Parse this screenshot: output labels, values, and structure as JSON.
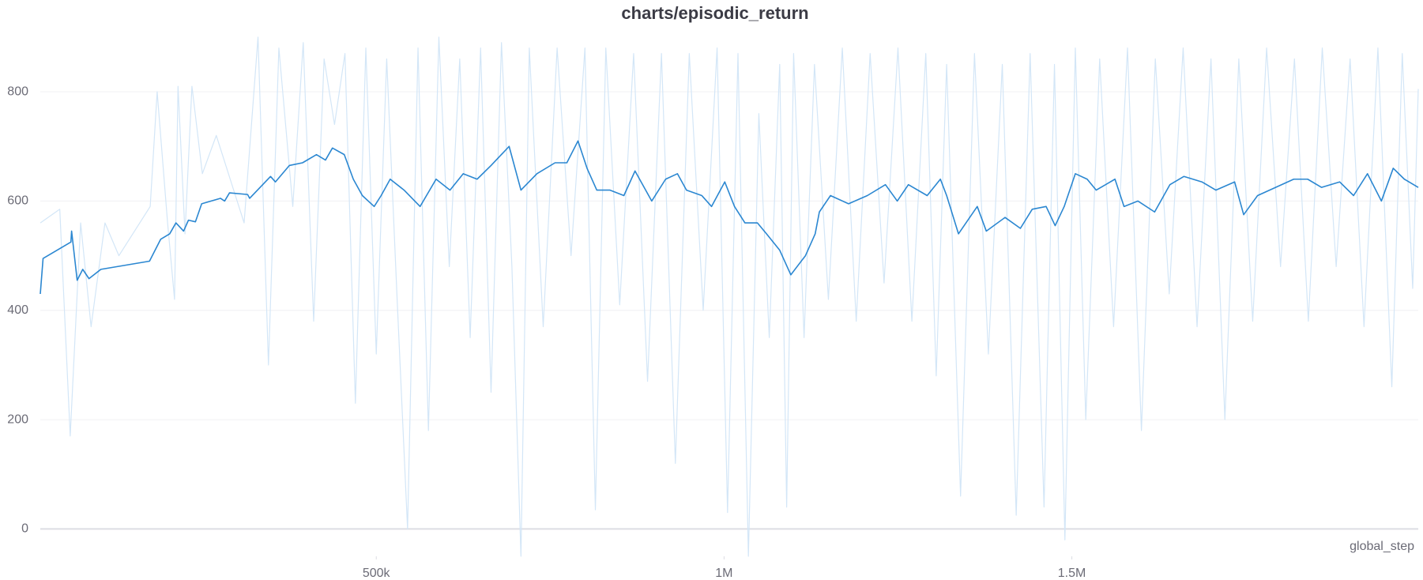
{
  "chart_data": {
    "type": "line",
    "title": "charts/episodic_return",
    "xlabel": "global_step",
    "xlim": [
      17000,
      1998000
    ],
    "ylim": [
      -50,
      910
    ],
    "xticks": [
      {
        "value": 500000,
        "label": "500k"
      },
      {
        "value": 1000000,
        "label": "1M"
      },
      {
        "value": 1500000,
        "label": "1.5M"
      }
    ],
    "yticks": [
      0,
      200,
      400,
      600,
      800
    ],
    "grid": true,
    "series": [
      {
        "role": "raw",
        "color": "#d3e6f7",
        "x": [
          17000,
          45000,
          60000,
          75000,
          90000,
          110000,
          130000,
          175000,
          185000,
          200000,
          210000,
          215000,
          225000,
          235000,
          250000,
          270000,
          290000,
          310000,
          330000,
          345000,
          360000,
          380000,
          395000,
          410000,
          425000,
          440000,
          455000,
          470000,
          485000,
          500000,
          515000,
          530000,
          545000,
          560000,
          575000,
          590000,
          605000,
          620000,
          635000,
          650000,
          665000,
          680000,
          695000,
          708000,
          720000,
          740000,
          760000,
          780000,
          800000,
          815000,
          830000,
          850000,
          870000,
          890000,
          910000,
          930000,
          950000,
          970000,
          990000,
          1005000,
          1020000,
          1035000,
          1050000,
          1065000,
          1080000,
          1090000,
          1100000,
          1115000,
          1130000,
          1150000,
          1170000,
          1190000,
          1210000,
          1230000,
          1250000,
          1270000,
          1290000,
          1305000,
          1320000,
          1340000,
          1360000,
          1380000,
          1400000,
          1420000,
          1440000,
          1460000,
          1475000,
          1490000,
          1505000,
          1520000,
          1540000,
          1560000,
          1580000,
          1600000,
          1620000,
          1640000,
          1660000,
          1680000,
          1700000,
          1720000,
          1740000,
          1760000,
          1780000,
          1800000,
          1820000,
          1840000,
          1860000,
          1880000,
          1900000,
          1920000,
          1940000,
          1960000,
          1975000,
          1990000,
          1998000
        ],
        "values": [
          560,
          585,
          170,
          560,
          370,
          560,
          500,
          590,
          800,
          560,
          420,
          810,
          540,
          810,
          650,
          720,
          640,
          560,
          900,
          300,
          880,
          590,
          890,
          380,
          860,
          740,
          870,
          230,
          880,
          320,
          860,
          420,
          0,
          880,
          180,
          900,
          480,
          860,
          350,
          880,
          250,
          890,
          480,
          -50,
          880,
          370,
          880,
          500,
          880,
          35,
          880,
          410,
          870,
          270,
          870,
          120,
          870,
          400,
          880,
          30,
          870,
          -50,
          760,
          350,
          850,
          40,
          870,
          350,
          850,
          420,
          880,
          380,
          870,
          450,
          880,
          380,
          870,
          280,
          850,
          60,
          870,
          320,
          850,
          25,
          870,
          40,
          850,
          -20,
          880,
          200,
          860,
          370,
          880,
          180,
          860,
          430,
          880,
          370,
          860,
          200,
          860,
          380,
          880,
          480,
          860,
          380,
          880,
          480,
          860,
          370,
          880,
          260,
          870,
          440,
          805
        ]
      },
      {
        "role": "smoothed",
        "color": "#2b87d1",
        "x": [
          17000,
          21000,
          61000,
          62000,
          70000,
          78000,
          87000,
          104000,
          174000,
          190000,
          203000,
          212000,
          223000,
          230000,
          240000,
          249000,
          276000,
          282000,
          289000,
          315000,
          318000,
          348000,
          355000,
          375000,
          394000,
          414000,
          427000,
          437000,
          454000,
          467000,
          480000,
          497000,
          507000,
          520000,
          540000,
          563000,
          586000,
          606000,
          625000,
          645000,
          665000,
          691000,
          708000,
          731000,
          757000,
          774000,
          790000,
          803000,
          817000,
          836000,
          856000,
          872000,
          896000,
          916000,
          933000,
          946000,
          968000,
          982000,
          1001000,
          1015000,
          1030000,
          1048000,
          1061000,
          1080000,
          1096000,
          1117000,
          1131000,
          1137000,
          1153000,
          1179000,
          1206000,
          1232000,
          1249000,
          1265000,
          1292000,
          1311000,
          1320000,
          1337000,
          1364000,
          1377000,
          1404000,
          1426000,
          1443000,
          1463000,
          1476000,
          1489000,
          1505000,
          1522000,
          1535000,
          1562000,
          1575000,
          1595000,
          1619000,
          1641000,
          1661000,
          1687000,
          1707000,
          1734000,
          1747000,
          1767000,
          1793000,
          1819000,
          1839000,
          1859000,
          1885000,
          1905000,
          1925000,
          1945000,
          1962000,
          1978000,
          1998000
        ],
        "values": [
          430,
          495,
          525,
          545,
          455,
          475,
          458,
          475,
          490,
          530,
          540,
          560,
          545,
          565,
          562,
          595,
          605,
          600,
          615,
          612,
          605,
          645,
          635,
          665,
          670,
          685,
          675,
          697,
          685,
          640,
          610,
          590,
          610,
          640,
          620,
          590,
          640,
          620,
          650,
          640,
          665,
          700,
          620,
          650,
          670,
          670,
          710,
          660,
          620,
          620,
          610,
          655,
          600,
          640,
          650,
          620,
          610,
          590,
          635,
          590,
          560,
          560,
          540,
          510,
          465,
          500,
          540,
          580,
          610,
          595,
          610,
          630,
          600,
          630,
          610,
          640,
          610,
          540,
          590,
          545,
          570,
          550,
          585,
          590,
          555,
          590,
          650,
          640,
          620,
          640,
          590,
          600,
          580,
          630,
          645,
          635,
          620,
          635,
          575,
          610,
          625,
          640,
          640,
          625,
          635,
          610,
          650,
          600,
          660,
          640,
          625
        ]
      }
    ]
  }
}
